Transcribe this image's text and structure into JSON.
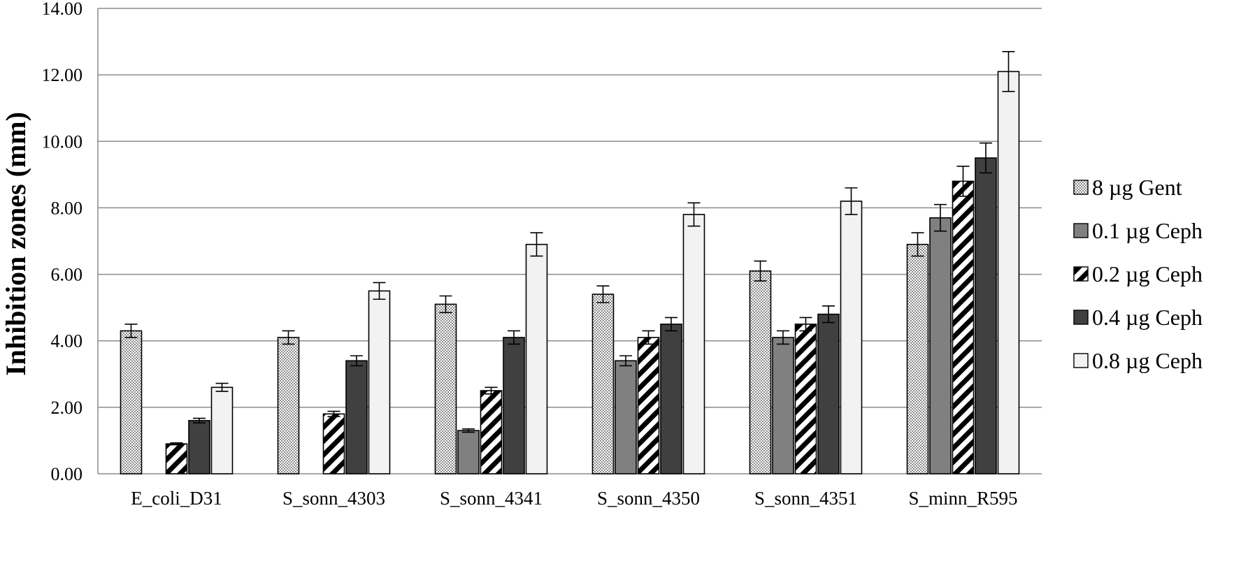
{
  "chart_data": {
    "type": "bar",
    "title": "",
    "xlabel": "",
    "ylabel": "Inhibition zones (mm)",
    "ylim": [
      0,
      14
    ],
    "yticks": [
      "0.00",
      "2.00",
      "4.00",
      "6.00",
      "8.00",
      "10.00",
      "12.00",
      "14.00"
    ],
    "grid": true,
    "legend_position": "right",
    "categories": [
      "E_coli_D31",
      "S_sonn_4303",
      "S_sonn_4341",
      "S_sonn_4350",
      "S_sonn_4351",
      "S_minn_R595"
    ],
    "series": [
      {
        "name": "8 µg Gent",
        "pattern": "checker",
        "values": [
          4.3,
          4.1,
          5.1,
          5.4,
          6.1,
          6.9
        ],
        "errors": [
          0.2,
          0.2,
          0.25,
          0.25,
          0.3,
          0.35
        ]
      },
      {
        "name": "0.1 µg Ceph",
        "pattern": "gray",
        "color": "#808080",
        "values": [
          0,
          0,
          1.3,
          3.4,
          4.1,
          7.7
        ],
        "errors": [
          0,
          0,
          0.05,
          0.15,
          0.2,
          0.4
        ]
      },
      {
        "name": "0.2 µg Ceph",
        "pattern": "diagonal-stripes",
        "values": [
          0.9,
          1.8,
          2.5,
          4.1,
          4.5,
          8.8
        ],
        "errors": [
          0.03,
          0.08,
          0.1,
          0.2,
          0.2,
          0.45
        ]
      },
      {
        "name": "0.4 µg Ceph",
        "pattern": "dark",
        "color": "#404040",
        "values": [
          1.6,
          3.4,
          4.1,
          4.5,
          4.8,
          9.5
        ],
        "errors": [
          0.07,
          0.15,
          0.2,
          0.2,
          0.25,
          0.45
        ]
      },
      {
        "name": "0.8 µg Ceph",
        "pattern": "light",
        "color": "#f2f2f2",
        "values": [
          2.6,
          5.5,
          6.9,
          7.8,
          8.2,
          12.1
        ],
        "errors": [
          0.12,
          0.25,
          0.35,
          0.35,
          0.4,
          0.6
        ]
      }
    ]
  }
}
